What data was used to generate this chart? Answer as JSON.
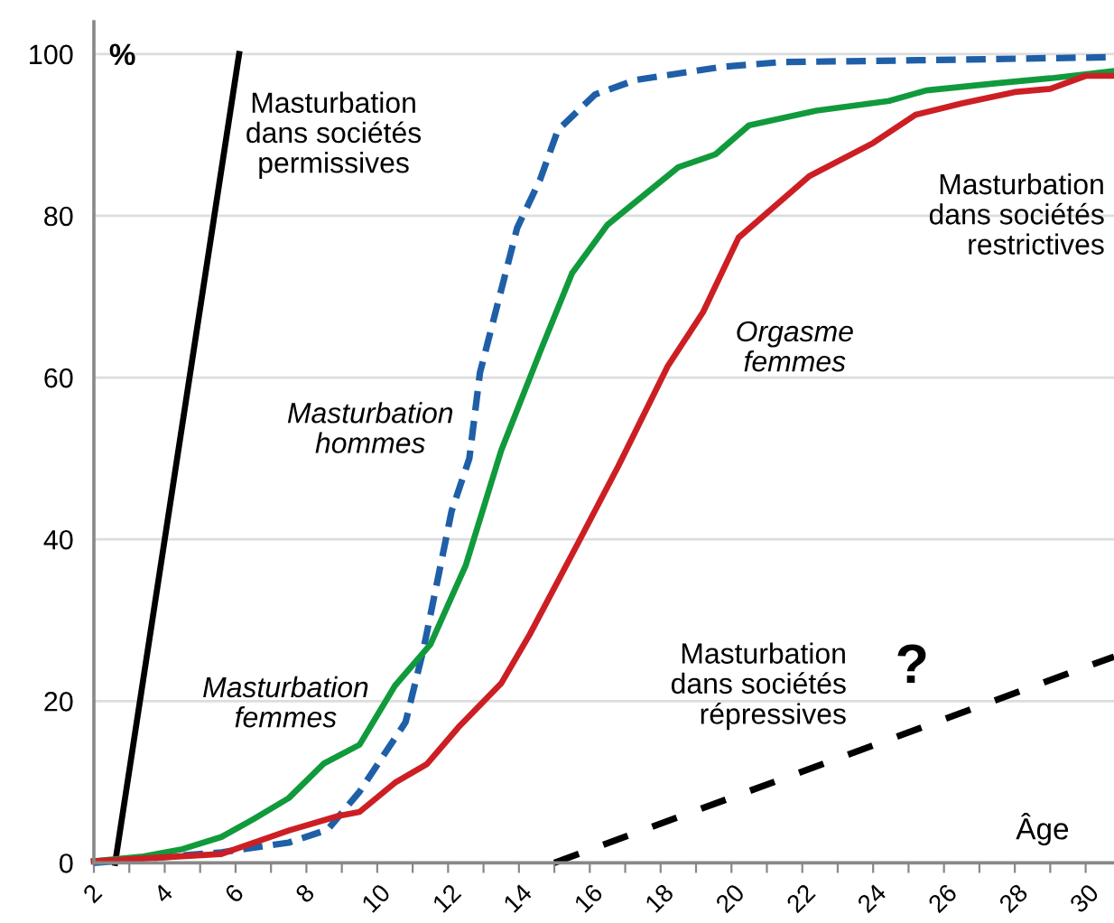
{
  "chart_data": {
    "type": "line",
    "xlabel": "Âge",
    "ylabel": "%",
    "xlim": [
      2,
      30.8
    ],
    "ylim": [
      0,
      104
    ],
    "xticks": [
      2,
      {
        "value": 3,
        "label": null
      },
      4,
      {
        "value": 5,
        "label": null
      },
      6,
      {
        "value": 7,
        "label": null
      },
      8,
      {
        "value": 9,
        "label": null
      },
      10,
      {
        "value": 11,
        "label": null
      },
      12,
      {
        "value": 13,
        "label": null
      },
      14,
      {
        "value": 15,
        "label": null
      },
      16,
      {
        "value": 17,
        "label": null
      },
      18,
      {
        "value": 19,
        "label": null
      },
      20,
      {
        "value": 21,
        "label": null
      },
      22,
      {
        "value": 23,
        "label": null
      },
      24,
      {
        "value": 25,
        "label": null
      },
      26,
      {
        "value": 27,
        "label": null
      },
      28,
      {
        "value": 29,
        "label": null
      },
      30
    ],
    "yticks": [
      0,
      20,
      40,
      60,
      80,
      100
    ],
    "grid": "y",
    "legend": false,
    "marker": "none",
    "series": [
      {
        "color": "#000000",
        "line_style": "solid",
        "x": [
          2.6,
          6.1
        ],
        "values": [
          0,
          100
        ]
      },
      {
        "color": "#1f5fa8",
        "line_style": "dashed",
        "x": [
          2,
          5.6,
          7.5,
          8.6,
          9.5,
          10.8,
          11.3,
          12.1,
          12.6,
          12.9,
          13.95,
          14.6,
          15.1,
          16.15,
          17.3,
          19.7,
          21.4,
          24.8,
          30.6
        ],
        "values": [
          0,
          1.3,
          2.5,
          4.1,
          8.8,
          17.4,
          26.3,
          43.5,
          50,
          60.6,
          78.5,
          84.5,
          90.6,
          95,
          96.8,
          98.4,
          99,
          99.2,
          99.6
        ]
      },
      {
        "color": "#119a3c",
        "line_style": "solid",
        "x": [
          2,
          3.4,
          4.5,
          5.6,
          6.5,
          7.5,
          8.5,
          9.5,
          10.5,
          11.5,
          12.5,
          13.5,
          14.6,
          15.5,
          16.5,
          18.5,
          19.55,
          20.5,
          22.4,
          24.45,
          25.5,
          27.5,
          29,
          30.8
        ],
        "values": [
          0.2,
          0.8,
          1.7,
          3.2,
          5.4,
          8,
          12.3,
          14.6,
          21.9,
          27,
          36.8,
          51,
          63.2,
          72.9,
          78.9,
          86,
          87.6,
          91.2,
          93,
          94.2,
          95.5,
          96.4,
          97,
          97.9
        ]
      },
      {
        "color": "#cc1f24",
        "line_style": "solid",
        "x": [
          2,
          5.6,
          7.5,
          8.9,
          9.5,
          10.5,
          11.4,
          12.3,
          13.5,
          14.3,
          15.7,
          16.8,
          18.2,
          19.2,
          20.2,
          22.2,
          24,
          25.2,
          26.5,
          28,
          29,
          30,
          30.8
        ],
        "values": [
          0.2,
          1.1,
          4,
          5.8,
          6.3,
          9.9,
          12.2,
          16.8,
          22.2,
          28.2,
          39.8,
          49,
          61.4,
          68.1,
          77.3,
          84.9,
          89,
          92.5,
          93.9,
          95.3,
          95.7,
          97.3,
          97.3
        ]
      },
      {
        "color": "#000000",
        "line_style": "dashed",
        "x": [
          15,
          30.8
        ],
        "values": [
          0,
          25.5
        ]
      }
    ],
    "annotations": [
      "Masturbation\ndans sociétés\npermissives",
      "Masturbation\nhommes",
      "Masturbation\nfemmes",
      "Orgasme\nfemmes",
      "Masturbation\ndans sociétés\nrestrictives",
      "Masturbation\ndans sociétés\nrépressives",
      "?"
    ]
  }
}
